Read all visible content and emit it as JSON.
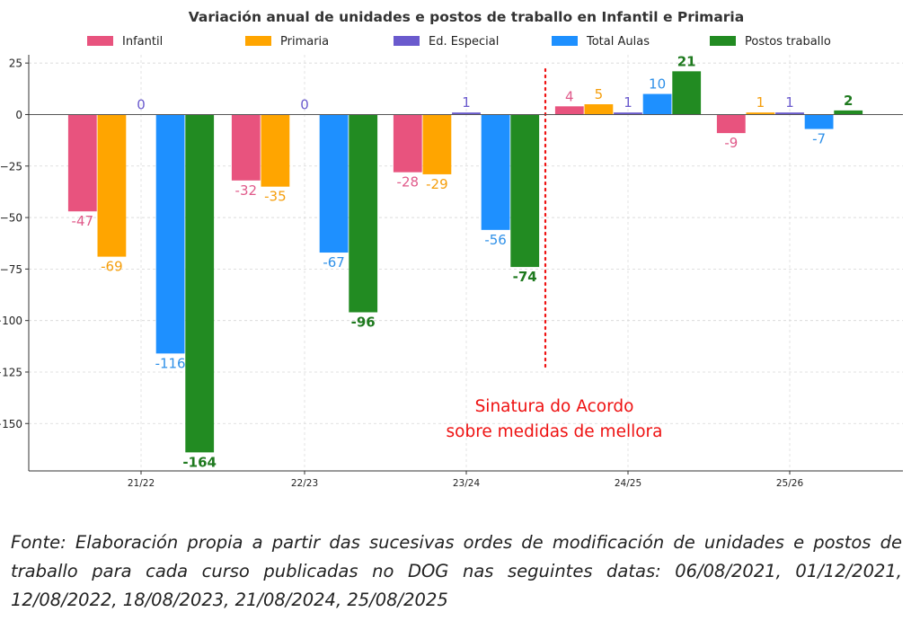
{
  "chart_data": {
    "type": "bar",
    "title": "Variación anual de unidades e postos de traballo en Infantil e Primaria",
    "categories": [
      "21/22",
      "22/23",
      "23/24",
      "24/25",
      "25/26"
    ],
    "series": [
      {
        "name": "Infantil",
        "color": "#e8537e",
        "label_color": "#e05a8a",
        "values": [
          -47,
          -32,
          -28,
          4,
          -9
        ]
      },
      {
        "name": "Primaria",
        "color": "#ffa500",
        "label_color": "#f59e0b",
        "values": [
          -69,
          -35,
          -29,
          5,
          1
        ]
      },
      {
        "name": "Ed. Especial",
        "color": "#6a5acd",
        "label_color": "#6a5acd",
        "values": [
          0,
          0,
          1,
          1,
          1
        ]
      },
      {
        "name": "Total Aulas",
        "color": "#1e90ff",
        "label_color": "#2e90e8",
        "values": [
          -116,
          -67,
          -56,
          10,
          -7
        ]
      },
      {
        "name": "Postos traballo",
        "color": "#228b22",
        "label_color": "#1f7a1f",
        "values": [
          -164,
          -96,
          -74,
          21,
          2
        ]
      }
    ],
    "y_ticks": [
      "25",
      "0",
      "−25",
      "−50",
      "−75",
      "−100",
      "−125",
      "−150"
    ],
    "y_tick_values": [
      25,
      0,
      -25,
      -50,
      -75,
      -100,
      -125,
      -150
    ],
    "ylim": [
      -173,
      29
    ],
    "grid": true,
    "legend_position": "top",
    "annotation": {
      "lines": [
        "Sinatura do Acordo",
        "sobre medidas de mellora"
      ],
      "color": "#ee1111",
      "divider_color": "#ee1111"
    }
  },
  "source_note": {
    "lines": [
      "Fonte: Elaboración propia a partir das sucesivas ordes de modificación de unidades e postos de",
      "traballo para cada curso publicadas no DOG nas seguintes datas: 06/08/2021, 01/12/2021,",
      "12/08/2022, 18/08/2023, 21/08/2024, 25/08/2025"
    ]
  }
}
